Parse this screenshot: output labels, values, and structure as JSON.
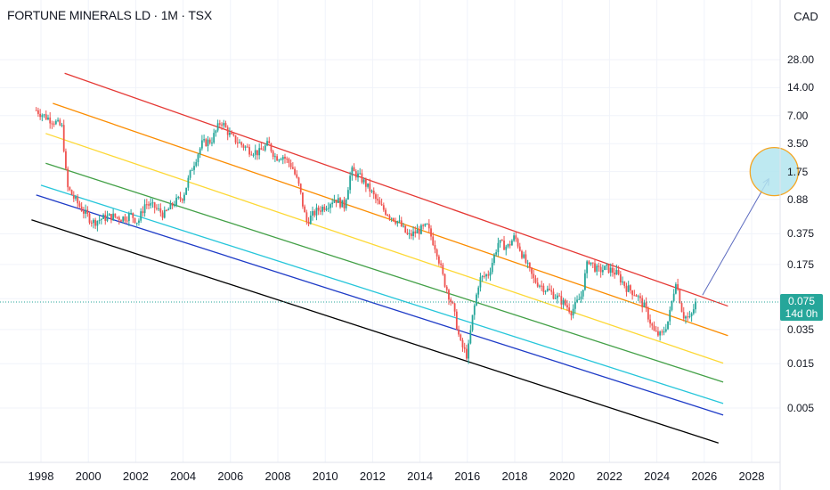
{
  "header": {
    "title": "FORTUNE MINERALS LD · 1M · TSX",
    "currency": "CAD"
  },
  "price_badge": {
    "price": "0.075",
    "countdown": "14d 0h",
    "color": "#26a69a"
  },
  "chart_data": {
    "type": "candlestick",
    "symbol": "FORTUNE MINERALS LD",
    "interval": "1M",
    "exchange": "TSX",
    "y_scale": "log",
    "y_ticks": [
      "28.00",
      "14.00",
      "7.00",
      "3.50",
      "1.75",
      "0.88",
      "0.375",
      "0.175",
      "0.075",
      "0.035",
      "0.015",
      "0.005"
    ],
    "x_ticks": [
      "1998",
      "2000",
      "2002",
      "2004",
      "2006",
      "2008",
      "2010",
      "2012",
      "2014",
      "2016",
      "2018",
      "2020",
      "2022",
      "2024",
      "2026",
      "2028"
    ],
    "last_price": 0.075,
    "up_color": "#26a69a",
    "down_color": "#ef5350",
    "price_path": [
      [
        1997.8,
        8.0
      ],
      [
        1998.2,
        6.8
      ],
      [
        1998.6,
        6.0
      ],
      [
        1998.9,
        5.2
      ],
      [
        1999.1,
        1.2
      ],
      [
        1999.4,
        0.9
      ],
      [
        1999.8,
        0.65
      ],
      [
        2000.2,
        0.5
      ],
      [
        2000.6,
        0.55
      ],
      [
        2001.0,
        0.58
      ],
      [
        2001.4,
        0.55
      ],
      [
        2001.8,
        0.6
      ],
      [
        2002.1,
        0.5
      ],
      [
        2002.4,
        0.8
      ],
      [
        2002.8,
        0.72
      ],
      [
        2003.2,
        0.6
      ],
      [
        2003.6,
        0.8
      ],
      [
        2004.0,
        0.95
      ],
      [
        2004.4,
        2.0
      ],
      [
        2004.8,
        3.5
      ],
      [
        2005.2,
        3.8
      ],
      [
        2005.6,
        6.2
      ],
      [
        2006.0,
        4.2
      ],
      [
        2006.4,
        3.5
      ],
      [
        2006.8,
        3.0
      ],
      [
        2007.2,
        2.8
      ],
      [
        2007.6,
        3.5
      ],
      [
        2007.9,
        2.5
      ],
      [
        2008.2,
        2.6
      ],
      [
        2008.6,
        2.0
      ],
      [
        2008.9,
        1.2
      ],
      [
        2009.2,
        0.5
      ],
      [
        2009.6,
        0.65
      ],
      [
        2010.0,
        0.75
      ],
      [
        2010.4,
        0.9
      ],
      [
        2010.8,
        0.75
      ],
      [
        2011.1,
        1.8
      ],
      [
        2011.5,
        1.5
      ],
      [
        2011.9,
        1.1
      ],
      [
        2012.3,
        0.75
      ],
      [
        2012.7,
        0.6
      ],
      [
        2013.1,
        0.5
      ],
      [
        2013.5,
        0.35
      ],
      [
        2013.9,
        0.4
      ],
      [
        2014.3,
        0.45
      ],
      [
        2014.7,
        0.25
      ],
      [
        2015.0,
        0.12
      ],
      [
        2015.4,
        0.06
      ],
      [
        2015.7,
        0.025
      ],
      [
        2016.0,
        0.018
      ],
      [
        2016.2,
        0.045
      ],
      [
        2016.5,
        0.12
      ],
      [
        2016.9,
        0.14
      ],
      [
        2017.3,
        0.3
      ],
      [
        2017.7,
        0.27
      ],
      [
        2018.0,
        0.35
      ],
      [
        2018.4,
        0.2
      ],
      [
        2018.8,
        0.12
      ],
      [
        2019.2,
        0.1
      ],
      [
        2019.6,
        0.085
      ],
      [
        2020.0,
        0.07
      ],
      [
        2020.4,
        0.055
      ],
      [
        2020.8,
        0.08
      ],
      [
        2021.1,
        0.2
      ],
      [
        2021.5,
        0.15
      ],
      [
        2021.9,
        0.16
      ],
      [
        2022.3,
        0.14
      ],
      [
        2022.7,
        0.1
      ],
      [
        2023.1,
        0.085
      ],
      [
        2023.5,
        0.06
      ],
      [
        2023.9,
        0.032
      ],
      [
        2024.2,
        0.03
      ],
      [
        2024.5,
        0.045
      ],
      [
        2024.8,
        0.12
      ],
      [
        2025.1,
        0.05
      ],
      [
        2025.4,
        0.045
      ],
      [
        2025.7,
        0.075
      ]
    ],
    "channel_lines": [
      {
        "color": "#e53935",
        "from": [
          1999.0,
          20.0
        ],
        "to": [
          2027.0,
          0.0625
        ]
      },
      {
        "color": "#fb8c00",
        "from": [
          1998.5,
          9.5
        ],
        "to": [
          2027.0,
          0.03
        ]
      },
      {
        "color": "#fdd835",
        "from": [
          1998.2,
          4.5
        ],
        "to": [
          2026.8,
          0.0152
        ]
      },
      {
        "color": "#43a047",
        "from": [
          1998.2,
          2.15
        ],
        "to": [
          2026.8,
          0.0095
        ]
      },
      {
        "color": "#26c6da",
        "from": [
          1998.0,
          1.25
        ],
        "to": [
          2026.8,
          0.0056
        ]
      },
      {
        "color": "#1e3bc7",
        "from": [
          1997.8,
          0.98
        ],
        "to": [
          2026.8,
          0.0042
        ]
      },
      {
        "color": "#000000",
        "from": [
          1997.6,
          0.53
        ],
        "to": [
          2026.6,
          0.0021
        ]
      }
    ],
    "projection": {
      "from": [
        2025.7,
        0.075
      ],
      "to": [
        2028.5,
        1.75
      ],
      "target_fill": "#b3e5ef",
      "target_stroke": "#f5a623",
      "arrow_color": "#5c6bc0"
    }
  }
}
